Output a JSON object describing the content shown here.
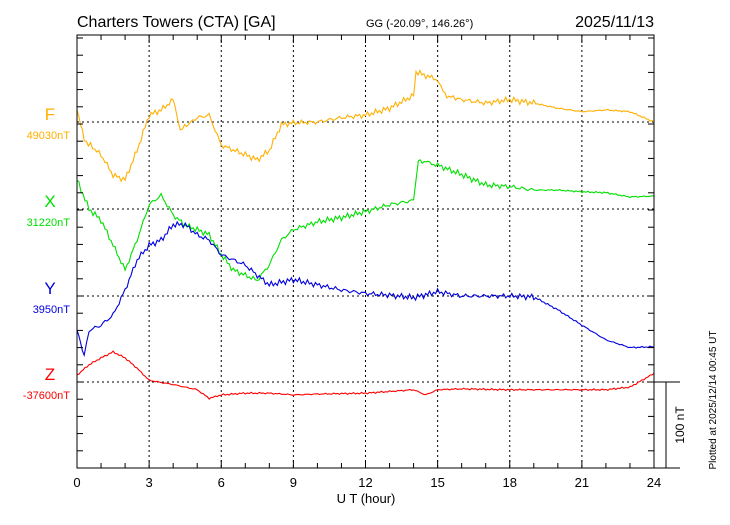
{
  "chart_data": {
    "type": "line",
    "title": "Charters Towers (CTA)  [GA]",
    "subtitle": "GG (-20.09°, 146.26°)",
    "date": "2025/11/13",
    "xlabel": "U T (hour)",
    "xlim": [
      0,
      24
    ],
    "xticks": [
      "0",
      "3",
      "6",
      "9",
      "12",
      "15",
      "18",
      "21",
      "24"
    ],
    "scale_bar_label": "100 nT",
    "plotted_note": "Plotted at 2025/12/14 00:45 UT",
    "unit": "nT",
    "series": [
      {
        "name": "F",
        "baseline_label": "49030nT",
        "color": "#ffb000",
        "x": [
          0,
          0.3,
          1,
          1.5,
          2,
          2.5,
          3,
          3.5,
          4,
          4.3,
          5,
          5.5,
          6,
          7,
          7.5,
          8,
          8.5,
          9,
          10,
          11,
          12,
          13,
          14,
          14.1,
          15,
          15.3,
          16,
          17,
          18,
          19,
          20,
          21,
          22,
          23,
          24
        ],
        "values": [
          14,
          -21,
          -38,
          -62,
          -67,
          -33,
          8,
          14,
          26,
          -9,
          5,
          8,
          -27,
          -38,
          -44,
          -33,
          -3,
          -1,
          0,
          5,
          8,
          16,
          31,
          58,
          49,
          31,
          26,
          22,
          26,
          22,
          16,
          12,
          14,
          12,
          0
        ]
      },
      {
        "name": "X",
        "baseline_label": "31220nT",
        "color": "#00e000",
        "x": [
          0,
          0.5,
          1,
          1.5,
          2,
          2.5,
          3,
          3.5,
          4,
          4.5,
          5,
          5.5,
          6,
          6.5,
          7,
          7.5,
          8,
          8.5,
          9,
          10,
          11,
          12,
          13,
          14,
          14.2,
          15,
          16,
          17,
          18,
          19,
          20,
          21,
          22,
          23,
          24
        ],
        "values": [
          34,
          0,
          -13,
          -42,
          -71,
          -36,
          5,
          16,
          -7,
          -19,
          -24,
          -30,
          -53,
          -71,
          -77,
          -83,
          -65,
          -36,
          -24,
          -15,
          -10,
          -3,
          5,
          10,
          57,
          51,
          40,
          28,
          26,
          22,
          22,
          20,
          19,
          14,
          15
        ]
      },
      {
        "name": "Y",
        "baseline_label": "3950nT",
        "color": "#0000e0",
        "x": [
          0,
          0.3,
          0.5,
          1,
          1.5,
          2,
          2.5,
          3,
          3.5,
          4,
          4.5,
          5,
          5.5,
          6,
          7,
          7.5,
          8,
          9,
          10,
          11,
          12,
          13,
          14,
          15,
          16,
          17,
          18,
          19,
          20,
          21,
          22,
          23,
          24
        ],
        "values": [
          -40,
          -69,
          -40,
          -34,
          -22,
          7,
          42,
          59,
          65,
          83,
          83,
          71,
          65,
          48,
          36,
          24,
          13,
          19,
          13,
          7,
          3,
          1,
          -2,
          5,
          0,
          0,
          0,
          -1,
          -16,
          -34,
          -51,
          -60,
          -59
        ]
      },
      {
        "name": "Z",
        "baseline_label": "-37600nT",
        "color": "#ff0000",
        "x": [
          0,
          0.5,
          1,
          1.5,
          2,
          2.5,
          3,
          4,
          5,
          5.5,
          6,
          7,
          8,
          9,
          10,
          12,
          14,
          14.5,
          15,
          16,
          18,
          20,
          22,
          23,
          24
        ],
        "values": [
          8,
          20,
          28,
          35,
          28,
          16,
          2,
          -3,
          -9,
          -19,
          -15,
          -13,
          -13,
          -15,
          -14,
          -13,
          -9,
          -15,
          -9,
          -8,
          -9,
          -9,
          -9,
          -6,
          10
        ]
      }
    ]
  }
}
